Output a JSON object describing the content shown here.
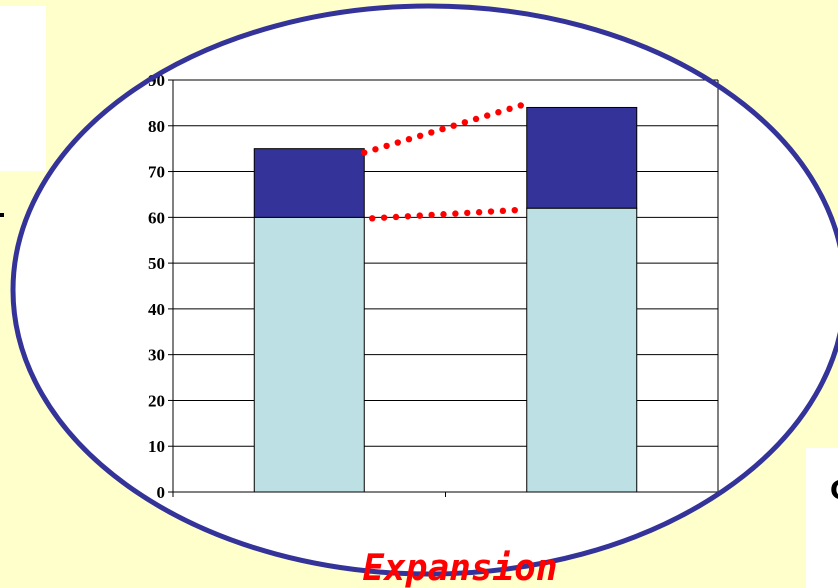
{
  "chart_data": {
    "type": "bar",
    "stacked": true,
    "categories": [
      "",
      ""
    ],
    "series": [
      {
        "values": [
          60,
          62
        ],
        "color": "#bce0e4"
      },
      {
        "values": [
          15,
          22
        ],
        "color": "#333399"
      }
    ],
    "ylim": [
      0,
      90
    ],
    "yticks": [
      "0",
      "10",
      "20",
      "30",
      "40",
      "50",
      "60",
      "70",
      "80",
      "90"
    ],
    "grid": true,
    "legend": "none",
    "annotations": [
      "Expansion"
    ]
  },
  "caption": "Expansion",
  "side_label": "C",
  "colors": {
    "background": "#ffffcc",
    "ellipse": "#333399",
    "dots": "#ff0000"
  }
}
